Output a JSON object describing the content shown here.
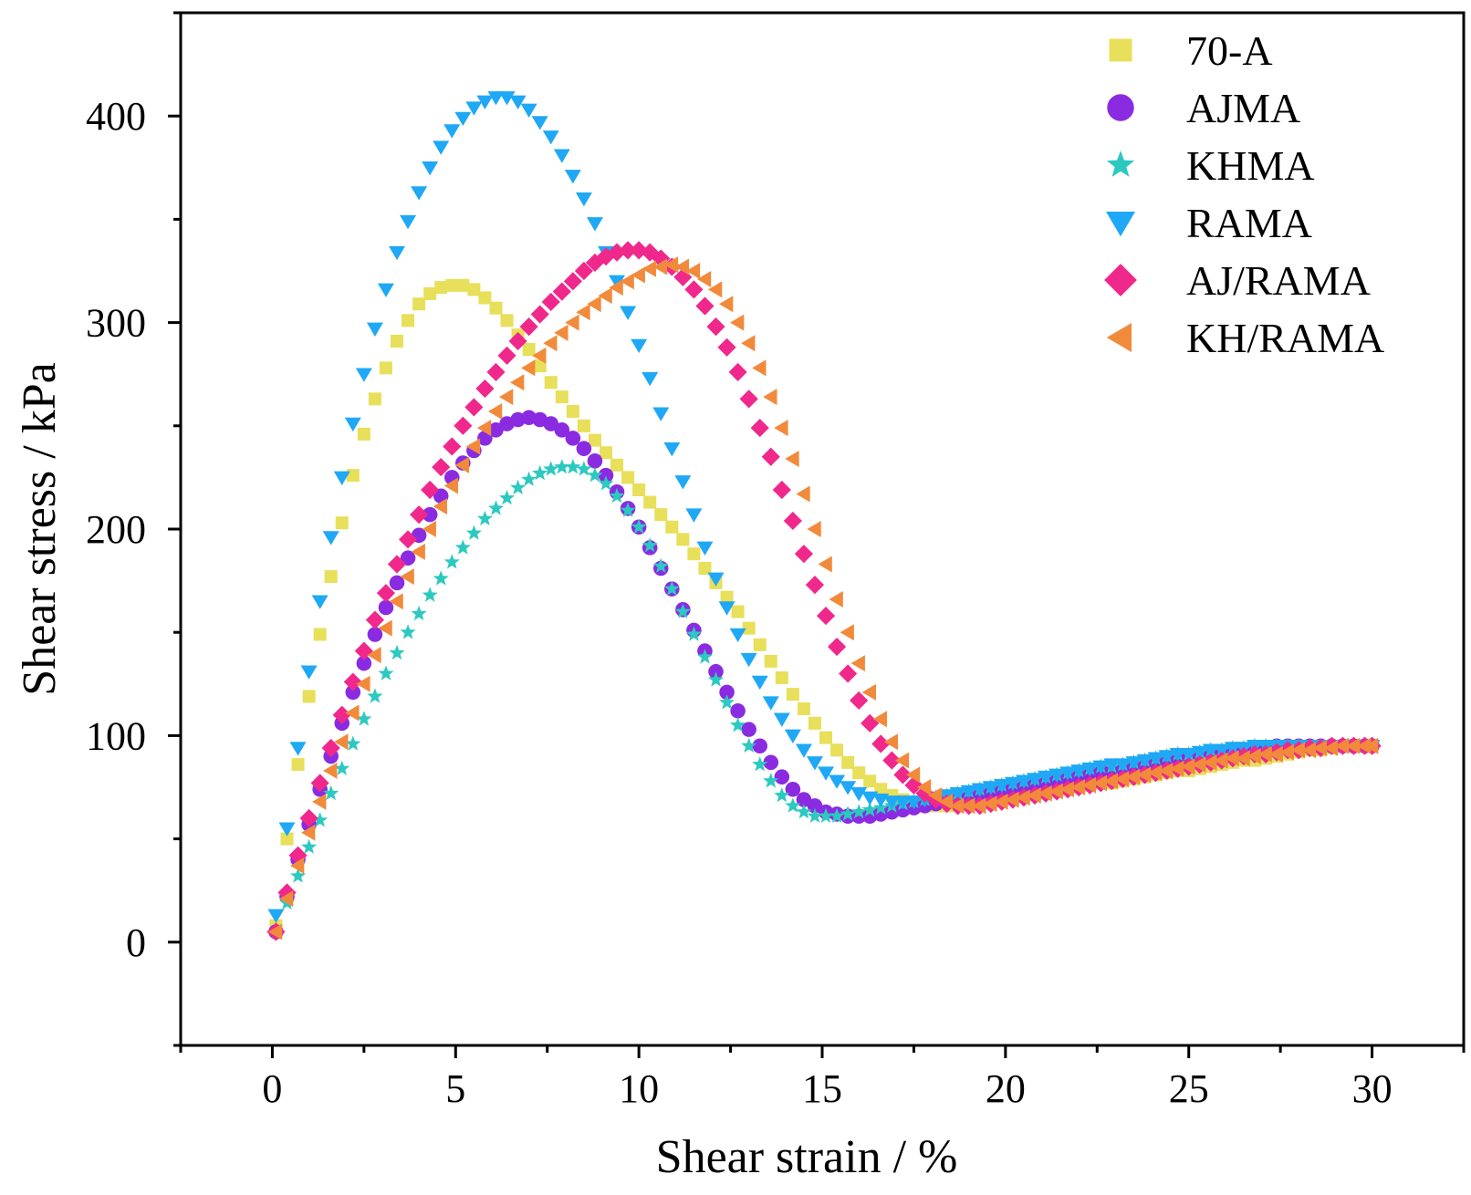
{
  "chart_data": {
    "type": "scatter",
    "title": "",
    "xlabel": "Shear strain / %",
    "ylabel": "Shear stress / kPa",
    "xlim": [
      -2.5,
      32.5
    ],
    "ylim": [
      -50,
      450
    ],
    "xticks": [
      0,
      5,
      10,
      15,
      20,
      25,
      30
    ],
    "yticks": [
      0,
      100,
      200,
      300,
      400
    ],
    "grid": false,
    "legend_position": "top-right",
    "x": [
      0.1,
      0.4,
      0.7,
      1.0,
      1.3,
      1.6,
      1.9,
      2.2,
      2.5,
      2.8,
      3.1,
      3.4,
      3.7,
      4.0,
      4.3,
      4.6,
      4.9,
      5.2,
      5.5,
      5.8,
      6.1,
      6.4,
      6.7,
      7.0,
      7.3,
      7.6,
      7.9,
      8.2,
      8.5,
      8.8,
      9.1,
      9.4,
      9.7,
      10.0,
      10.3,
      10.6,
      10.9,
      11.2,
      11.5,
      11.8,
      12.1,
      12.4,
      12.7,
      13.0,
      13.3,
      13.6,
      13.9,
      14.2,
      14.5,
      14.8,
      15.1,
      15.4,
      15.7,
      16.0,
      16.3,
      16.6,
      16.9,
      17.2,
      17.5,
      17.8,
      18.1,
      18.4,
      18.7,
      19.0,
      19.3,
      19.6,
      19.9,
      20.2,
      20.5,
      20.8,
      21.1,
      21.4,
      21.7,
      22.0,
      22.3,
      22.6,
      22.9,
      23.2,
      23.5,
      23.8,
      24.1,
      24.4,
      24.7,
      25.0,
      25.3,
      25.6,
      25.9,
      26.2,
      26.5,
      26.8,
      27.1,
      27.4,
      27.7,
      28.0,
      28.3,
      28.6,
      28.9,
      29.2,
      29.5,
      29.8,
      30.0
    ],
    "series": [
      {
        "name": "70-A",
        "marker": "square",
        "color": "#e8df5a",
        "values": [
          8,
          50,
          86,
          119,
          149,
          177,
          203,
          226,
          246,
          263,
          278,
          291,
          301,
          309,
          314,
          317,
          318,
          318,
          316,
          312,
          307,
          301,
          294,
          287,
          279,
          271,
          264,
          257,
          250,
          243,
          237,
          231,
          225,
          219,
          213,
          207,
          201,
          195,
          188,
          181,
          174,
          167,
          160,
          152,
          144,
          136,
          128,
          120,
          113,
          106,
          99,
          93,
          87,
          82,
          78,
          74,
          71,
          69,
          67,
          66,
          66,
          66,
          66,
          67,
          67,
          68,
          69,
          70,
          71,
          72,
          72,
          73,
          74,
          75,
          76,
          77,
          77,
          78,
          79,
          80,
          81,
          82,
          83,
          83,
          84,
          85,
          86,
          87,
          88,
          88,
          89,
          90,
          91,
          92,
          93,
          93,
          94,
          95,
          95,
          95,
          95
        ]
      },
      {
        "name": "AJMA",
        "marker": "circle",
        "color": "#8a2be2",
        "values": [
          5,
          22,
          40,
          57,
          74,
          90,
          106,
          121,
          135,
          149,
          162,
          174,
          186,
          197,
          207,
          216,
          225,
          232,
          238,
          244,
          248,
          251,
          253,
          254,
          253,
          251,
          248,
          244,
          239,
          233,
          226,
          218,
          210,
          201,
          191,
          181,
          171,
          161,
          151,
          141,
          131,
          121,
          112,
          103,
          95,
          87,
          80,
          74,
          69,
          66,
          63,
          62,
          61,
          61,
          61,
          62,
          63,
          64,
          65,
          66,
          67,
          68,
          69,
          70,
          71,
          72,
          73,
          74,
          75,
          76,
          77,
          78,
          79,
          80,
          81,
          82,
          83,
          84,
          85,
          86,
          86,
          87,
          88,
          89,
          90,
          91,
          92,
          92,
          93,
          94,
          94,
          95,
          95,
          95,
          95,
          95,
          95,
          95,
          95,
          95,
          95
        ]
      },
      {
        "name": "KHMA",
        "marker": "star",
        "color": "#2cc9c0",
        "values": [
          5,
          19,
          32,
          46,
          59,
          72,
          84,
          96,
          108,
          119,
          130,
          140,
          150,
          159,
          168,
          176,
          184,
          191,
          198,
          205,
          210,
          215,
          220,
          224,
          227,
          229,
          230,
          230,
          229,
          226,
          222,
          216,
          209,
          201,
          192,
          182,
          171,
          160,
          149,
          138,
          127,
          116,
          105,
          95,
          86,
          78,
          71,
          66,
          63,
          61,
          61,
          61,
          62,
          63,
          64,
          65,
          66,
          67,
          68,
          69,
          70,
          71,
          72,
          73,
          74,
          75,
          76,
          77,
          78,
          79,
          80,
          81,
          82,
          83,
          84,
          85,
          85,
          86,
          87,
          88,
          89,
          90,
          91,
          91,
          92,
          93,
          93,
          94,
          94,
          95,
          95,
          95,
          95,
          95,
          95,
          95,
          95,
          95,
          95,
          95,
          95
        ]
      },
      {
        "name": "RAMA",
        "marker": "triangle-down",
        "color": "#1fa8f5",
        "values": [
          13,
          55,
          94,
          131,
          165,
          196,
          225,
          251,
          275,
          297,
          316,
          334,
          349,
          363,
          375,
          385,
          393,
          399,
          404,
          407,
          409,
          409,
          407,
          403,
          397,
          390,
          381,
          371,
          360,
          348,
          334,
          320,
          305,
          289,
          273,
          256,
          239,
          223,
          207,
          191,
          176,
          162,
          149,
          137,
          126,
          116,
          108,
          100,
          93,
          87,
          82,
          78,
          75,
          72,
          70,
          69,
          68,
          68,
          68,
          69,
          70,
          71,
          72,
          73,
          74,
          75,
          76,
          77,
          78,
          79,
          80,
          81,
          82,
          83,
          84,
          85,
          86,
          86,
          87,
          88,
          89,
          90,
          91,
          91,
          92,
          93,
          93,
          94,
          94,
          95,
          95,
          95,
          95,
          95,
          95,
          95,
          95,
          95,
          95,
          95,
          95
        ]
      },
      {
        "name": "AJ/RAMA",
        "marker": "diamond",
        "color": "#f0288c",
        "values": [
          5,
          24,
          42,
          60,
          77,
          94,
          110,
          126,
          141,
          156,
          169,
          183,
          195,
          207,
          219,
          230,
          240,
          250,
          259,
          268,
          276,
          284,
          291,
          298,
          304,
          310,
          315,
          320,
          325,
          329,
          332,
          334,
          335,
          335,
          334,
          331,
          327,
          322,
          316,
          308,
          298,
          288,
          276,
          263,
          249,
          235,
          219,
          204,
          188,
          173,
          158,
          143,
          130,
          117,
          106,
          96,
          88,
          81,
          76,
          72,
          69,
          67,
          66,
          66,
          66,
          67,
          68,
          69,
          70,
          71,
          72,
          73,
          74,
          75,
          76,
          77,
          78,
          79,
          80,
          81,
          82,
          83,
          84,
          85,
          86,
          87,
          88,
          89,
          90,
          91,
          91,
          92,
          93,
          93,
          94,
          94,
          95,
          95,
          95,
          95,
          95
        ]
      },
      {
        "name": "KH/RAMA",
        "marker": "triangle-left",
        "color": "#f28a3b",
        "values": [
          5,
          21,
          37,
          53,
          68,
          83,
          97,
          111,
          125,
          139,
          152,
          165,
          177,
          189,
          200,
          211,
          221,
          231,
          240,
          249,
          257,
          264,
          271,
          278,
          284,
          290,
          295,
          300,
          305,
          309,
          313,
          317,
          320,
          323,
          326,
          327,
          328,
          327,
          325,
          321,
          316,
          309,
          300,
          290,
          278,
          264,
          249,
          234,
          217,
          200,
          183,
          166,
          150,
          135,
          121,
          108,
          97,
          88,
          81,
          75,
          71,
          68,
          66,
          66,
          66,
          67,
          68,
          69,
          70,
          71,
          72,
          73,
          74,
          75,
          76,
          77,
          78,
          79,
          80,
          81,
          82,
          83,
          84,
          85,
          86,
          87,
          88,
          89,
          89,
          90,
          91,
          91,
          92,
          93,
          93,
          94,
          94,
          95,
          95,
          95,
          95
        ]
      }
    ]
  }
}
